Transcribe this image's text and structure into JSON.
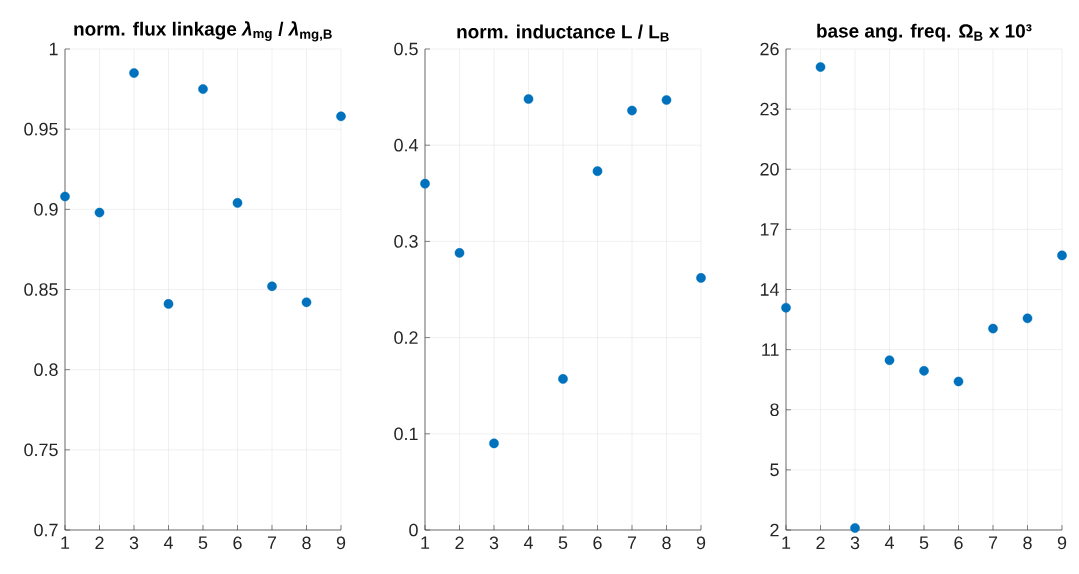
{
  "chart_data": [
    {
      "type": "scatter",
      "title": "norm. flux linkage *λ*$_{mg}$ / *λ*$_{mg,B}$",
      "x": [
        1,
        2,
        3,
        4,
        5,
        6,
        7,
        8,
        9
      ],
      "values": [
        0.908,
        0.898,
        0.985,
        0.841,
        0.975,
        0.904,
        0.852,
        0.842,
        0.958
      ],
      "color": "#0072bd",
      "marker": "circle",
      "grid": true,
      "xlim": [
        1,
        9
      ],
      "xticks": [
        1,
        2,
        3,
        4,
        5,
        6,
        7,
        8,
        9
      ],
      "ylim": [
        0.7,
        1
      ],
      "yticks": [
        0.7,
        0.75,
        0.8,
        0.85,
        0.9,
        0.95,
        1
      ]
    },
    {
      "type": "scatter",
      "title": "norm. inductance L / L$_{B}$",
      "x": [
        1,
        2,
        3,
        4,
        5,
        6,
        7,
        8,
        9
      ],
      "values": [
        0.36,
        0.288,
        0.09,
        0.448,
        0.157,
        0.373,
        0.436,
        0.447,
        0.262
      ],
      "color": "#0072bd",
      "marker": "circle",
      "grid": true,
      "xlim": [
        1,
        9
      ],
      "xticks": [
        1,
        2,
        3,
        4,
        5,
        6,
        7,
        8,
        9
      ],
      "ylim": [
        0,
        0.5
      ],
      "yticks": [
        0,
        0.1,
        0.2,
        0.3,
        0.4,
        0.5
      ]
    },
    {
      "type": "scatter",
      "title": "base ang. freq. Ω$_{B}$ x 10³",
      "x": [
        1,
        2,
        3,
        4,
        5,
        6,
        7,
        8,
        9
      ],
      "values": [
        13.09,
        25.1,
        2.1,
        10.47,
        9.94,
        9.41,
        12.05,
        12.56,
        15.7
      ],
      "color": "#0072bd",
      "marker": "circle",
      "grid": true,
      "xlim": [
        1,
        9
      ],
      "xticks": [
        1,
        2,
        3,
        4,
        5,
        6,
        7,
        8,
        9
      ],
      "ylim": [
        2,
        26
      ],
      "yticks": [
        2,
        5,
        8,
        11,
        14,
        17,
        20,
        23,
        26
      ]
    }
  ]
}
